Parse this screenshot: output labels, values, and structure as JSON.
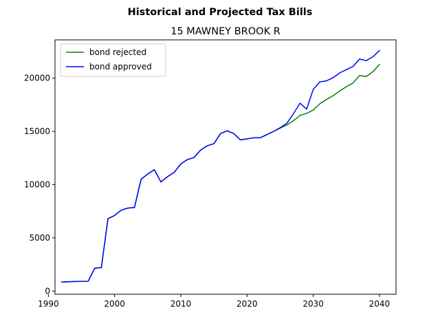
{
  "chart_data": {
    "type": "line",
    "suptitle": "Historical and Projected Tax Bills",
    "title": "15 MAWNEY BROOK R",
    "xlabel": "",
    "ylabel": "",
    "xlim": [
      1991,
      2042.5
    ],
    "ylim": [
      -300,
      23600
    ],
    "xticks": [
      1990,
      2000,
      2010,
      2020,
      2030,
      2040
    ],
    "yticks": [
      0,
      5000,
      10000,
      15000,
      20000
    ],
    "grid": false,
    "legend_placement": "top-left",
    "x": [
      1992,
      1993,
      1994,
      1995,
      1996,
      1997,
      1998,
      1999,
      2000,
      2001,
      2002,
      2003,
      2004,
      2005,
      2006,
      2007,
      2008,
      2009,
      2010,
      2011,
      2012,
      2013,
      2014,
      2015,
      2016,
      2017,
      2018,
      2019,
      2020,
      2021,
      2022,
      2023,
      2024,
      2025,
      2026,
      2027,
      2028,
      2029,
      2030,
      2031,
      2032,
      2033,
      2034,
      2035,
      2036,
      2037,
      2038,
      2039,
      2040
    ],
    "series": [
      {
        "name": "bond rejected",
        "color": "#008000",
        "values": [
          850,
          870,
          900,
          910,
          920,
          2150,
          2200,
          6800,
          7100,
          7600,
          7800,
          7850,
          10500,
          11000,
          11400,
          10250,
          10750,
          11150,
          11950,
          12350,
          12550,
          13250,
          13650,
          13850,
          14800,
          15050,
          14800,
          14200,
          14300,
          14400,
          14400,
          14700,
          15000,
          15300,
          15600,
          16000,
          16500,
          16700,
          17000,
          17600,
          18000,
          18350,
          18800,
          19200,
          19550,
          20250,
          20150,
          20600,
          21300
        ]
      },
      {
        "name": "bond approved",
        "color": "#0000ff",
        "values": [
          850,
          870,
          900,
          910,
          920,
          2150,
          2200,
          6800,
          7100,
          7600,
          7800,
          7850,
          10500,
          11000,
          11400,
          10250,
          10750,
          11150,
          11950,
          12350,
          12550,
          13250,
          13650,
          13850,
          14800,
          15050,
          14800,
          14200,
          14300,
          14400,
          14400,
          14700,
          15000,
          15350,
          15750,
          16650,
          17650,
          17100,
          18950,
          19650,
          19750,
          20050,
          20500,
          20800,
          21100,
          21800,
          21650,
          22000,
          22600
        ]
      }
    ]
  }
}
